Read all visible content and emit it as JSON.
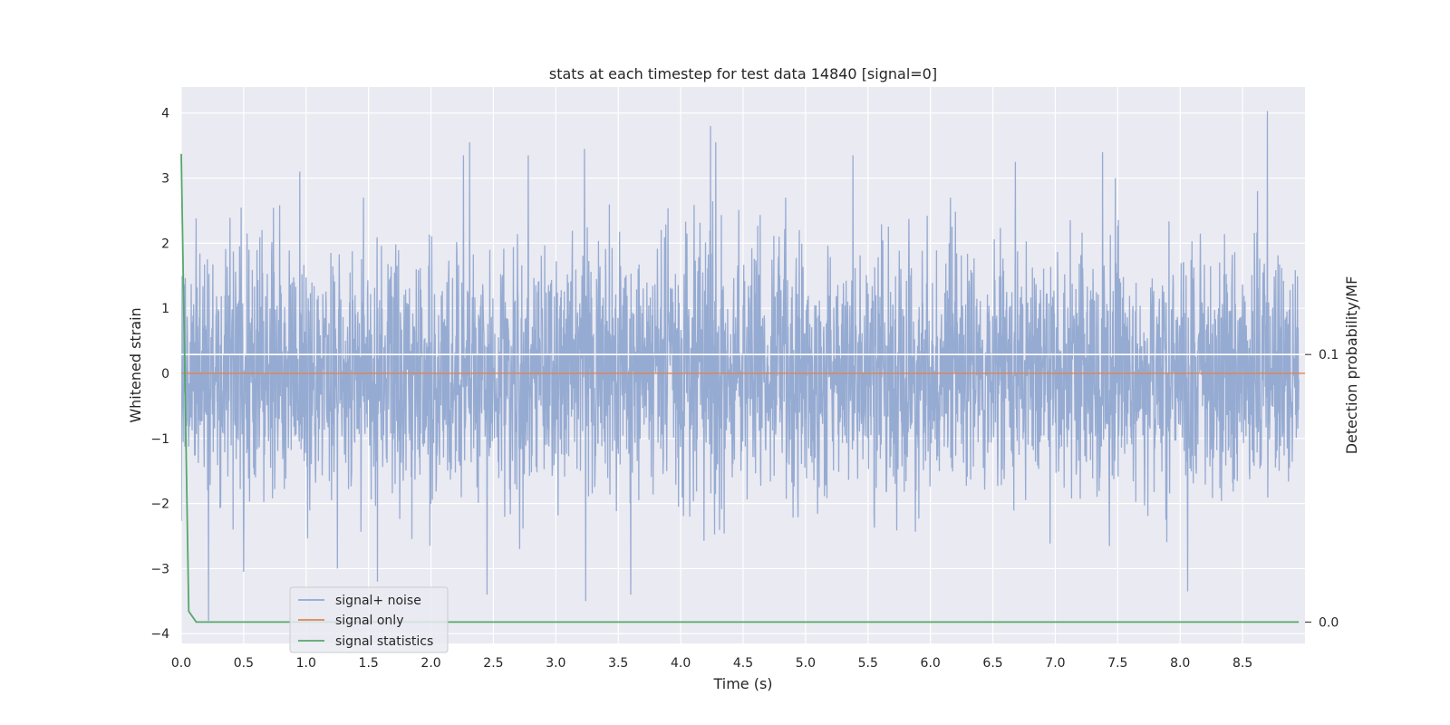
{
  "chart_data": {
    "type": "line",
    "title": "stats at each timestep for test data 14840 [signal=0]",
    "xlabel": "Time (s)",
    "ylabel": "Whitened strain",
    "y2label": "Detection probability/MF",
    "xlim": [
      0.0,
      9.0
    ],
    "ylim": [
      -4.15,
      4.4
    ],
    "y2lim": [
      -0.008,
      0.2
    ],
    "x_ticks": [
      "0.0",
      "0.5",
      "1.0",
      "1.5",
      "2.0",
      "2.5",
      "3.0",
      "3.5",
      "4.0",
      "4.5",
      "5.0",
      "5.5",
      "6.0",
      "6.5",
      "7.0",
      "7.5",
      "8.0",
      "8.5"
    ],
    "y_ticks": [
      "−4",
      "−3",
      "−2",
      "−1",
      "0",
      "1",
      "2",
      "3",
      "4"
    ],
    "y2_ticks": [
      "0.0",
      "0.1"
    ],
    "y2_reference_line": 0.1,
    "grid": true,
    "legend_position": "lower-left",
    "series": [
      {
        "name": "signal+ noise",
        "color": "#91a8d0",
        "axis": "left",
        "noise_amplitude": 0.95,
        "peaks": [
          {
            "x": 0.22,
            "y": -3.8
          },
          {
            "x": 0.5,
            "y": -3.05
          },
          {
            "x": 0.95,
            "y": 3.1
          },
          {
            "x": 1.25,
            "y": -3.0
          },
          {
            "x": 1.57,
            "y": -3.2
          },
          {
            "x": 2.26,
            "y": 3.35
          },
          {
            "x": 2.31,
            "y": 3.55
          },
          {
            "x": 2.45,
            "y": -3.4
          },
          {
            "x": 2.78,
            "y": 3.35
          },
          {
            "x": 3.23,
            "y": 3.45
          },
          {
            "x": 3.24,
            "y": -3.5
          },
          {
            "x": 3.6,
            "y": -3.4
          },
          {
            "x": 4.24,
            "y": 3.8
          },
          {
            "x": 4.28,
            "y": 3.55
          },
          {
            "x": 5.38,
            "y": 3.35
          },
          {
            "x": 6.68,
            "y": 3.25
          },
          {
            "x": 7.38,
            "y": 3.4
          },
          {
            "x": 7.48,
            "y": 3.0
          },
          {
            "x": 8.06,
            "y": -3.35
          },
          {
            "x": 8.7,
            "y": 4.03
          },
          {
            "x": 8.62,
            "y": 2.8
          }
        ]
      },
      {
        "name": "signal only",
        "color": "#dd8452",
        "axis": "left",
        "x": [
          0.0,
          9.0
        ],
        "y": [
          0.0,
          0.0
        ]
      },
      {
        "name": "signal statistics",
        "color": "#55a868",
        "axis": "right",
        "x": [
          0.0,
          0.06,
          0.12,
          0.2,
          0.8,
          1.0,
          8.95
        ],
        "y": [
          0.175,
          0.004,
          0.0,
          0.0,
          0.0,
          0.0,
          0.0
        ]
      }
    ]
  }
}
